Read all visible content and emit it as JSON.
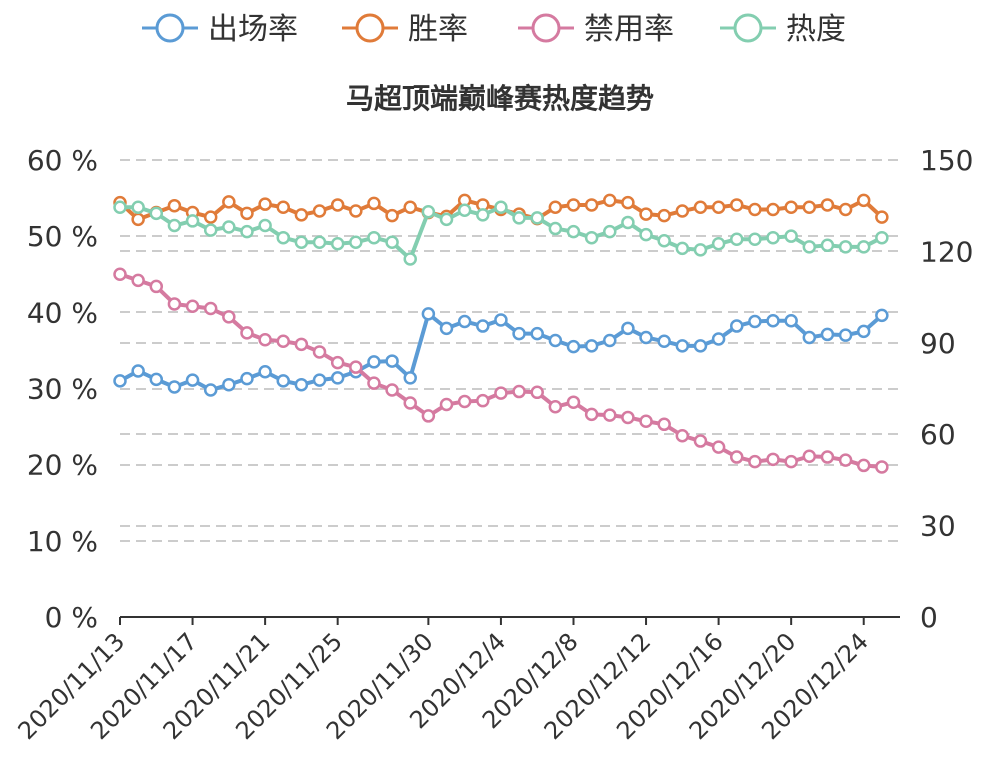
{
  "chart_data": {
    "type": "line",
    "title": "马超顶端巅峰赛热度趋势",
    "legend": {
      "placement": "top"
    },
    "categories": [
      "2020/11/13",
      "2020/11/14",
      "2020/11/15",
      "2020/11/16",
      "2020/11/17",
      "2020/11/18",
      "2020/11/19",
      "2020/11/20",
      "2020/11/21",
      "2020/11/22",
      "2020/11/23",
      "2020/11/24",
      "2020/11/25",
      "2020/11/26",
      "2020/11/27",
      "2020/11/28",
      "2020/11/29",
      "2020/11/30",
      "2020/12/1",
      "2020/12/2",
      "2020/12/3",
      "2020/12/4",
      "2020/12/5",
      "2020/12/6",
      "2020/12/7",
      "2020/12/8",
      "2020/12/9",
      "2020/12/10",
      "2020/12/11",
      "2020/12/12",
      "2020/12/13",
      "2020/12/14",
      "2020/12/15",
      "2020/12/16",
      "2020/12/17",
      "2020/12/18",
      "2020/12/19",
      "2020/12/20",
      "2020/12/21",
      "2020/12/22",
      "2020/12/23",
      "2020/12/24",
      "2020/12/25",
      "2020/12/26"
    ],
    "tick_labels": [
      "2020/11/13",
      "2020/11/17",
      "2020/11/21",
      "2020/11/25",
      "2020/11/30",
      "2020/12/4",
      "2020/12/8",
      "2020/12/12",
      "2020/12/16",
      "2020/12/20",
      "2020/12/24"
    ],
    "left_axis": {
      "ticks": [
        "0 %",
        "10 %",
        "20 %",
        "30 %",
        "40 %",
        "50 %",
        "60 %"
      ],
      "range": [
        0,
        60
      ]
    },
    "right_axis": {
      "ticks": [
        "0",
        "30",
        "60",
        "90",
        "120",
        "150"
      ],
      "range": [
        0,
        150
      ]
    },
    "grid": true,
    "series": [
      {
        "name": "出场率",
        "color": "#5b9bd5",
        "axis": "left",
        "values": [
          31.0,
          32.3,
          31.2,
          30.2,
          31.1,
          29.8,
          30.5,
          31.3,
          32.2,
          31.0,
          30.5,
          31.1,
          31.4,
          32.2,
          33.5,
          33.6,
          31.4,
          39.8,
          37.9,
          38.8,
          38.2,
          39.0,
          37.2,
          37.2,
          36.3,
          35.5,
          35.6,
          36.3,
          37.9,
          36.7,
          36.2,
          35.6,
          35.6,
          36.5,
          38.2,
          38.8,
          38.9,
          38.9,
          36.7,
          37.1,
          37.0,
          37.5,
          39.6,
          null
        ]
      },
      {
        "name": "胜率",
        "color": "#e07b39",
        "axis": "left",
        "values": [
          54.4,
          52.2,
          53.1,
          54.0,
          53.1,
          52.5,
          54.5,
          53.0,
          54.2,
          53.8,
          52.8,
          53.3,
          54.1,
          53.3,
          54.3,
          52.7,
          53.8,
          53.1,
          52.6,
          54.7,
          54.1,
          53.5,
          52.9,
          52.3,
          53.8,
          54.1,
          54.1,
          54.7,
          54.4,
          52.9,
          52.7,
          53.3,
          53.8,
          53.8,
          54.1,
          53.5,
          53.5,
          53.8,
          53.8,
          54.1,
          53.5,
          54.7,
          52.5,
          null
        ]
      },
      {
        "name": "禁用率",
        "color": "#d57aa0",
        "axis": "left",
        "values": [
          45.0,
          44.2,
          43.4,
          41.1,
          40.8,
          40.5,
          39.4,
          37.3,
          36.4,
          36.2,
          35.8,
          34.8,
          33.4,
          32.8,
          30.7,
          29.8,
          28.1,
          26.4,
          27.9,
          28.3,
          28.4,
          29.4,
          29.6,
          29.5,
          27.6,
          28.2,
          26.6,
          26.5,
          26.2,
          25.7,
          25.3,
          23.8,
          23.1,
          22.3,
          21.0,
          20.4,
          20.7,
          20.4,
          21.1,
          21.0,
          20.6,
          19.9,
          19.7,
          null
        ]
      },
      {
        "name": "热度",
        "color": "#83ceb0",
        "axis": "right",
        "values": [
          134.5,
          134.5,
          132.5,
          128.5,
          130.0,
          127.0,
          128.0,
          126.5,
          128.5,
          124.5,
          123.0,
          123.0,
          122.5,
          123.0,
          124.5,
          123.0,
          117.5,
          133.0,
          130.5,
          133.5,
          132.0,
          134.5,
          131.0,
          131.0,
          127.5,
          126.5,
          124.5,
          126.5,
          129.5,
          125.5,
          123.5,
          121.0,
          120.5,
          122.5,
          124.0,
          124.0,
          124.5,
          125.0,
          121.5,
          122.0,
          121.5,
          121.5,
          124.5,
          null
        ]
      }
    ]
  }
}
